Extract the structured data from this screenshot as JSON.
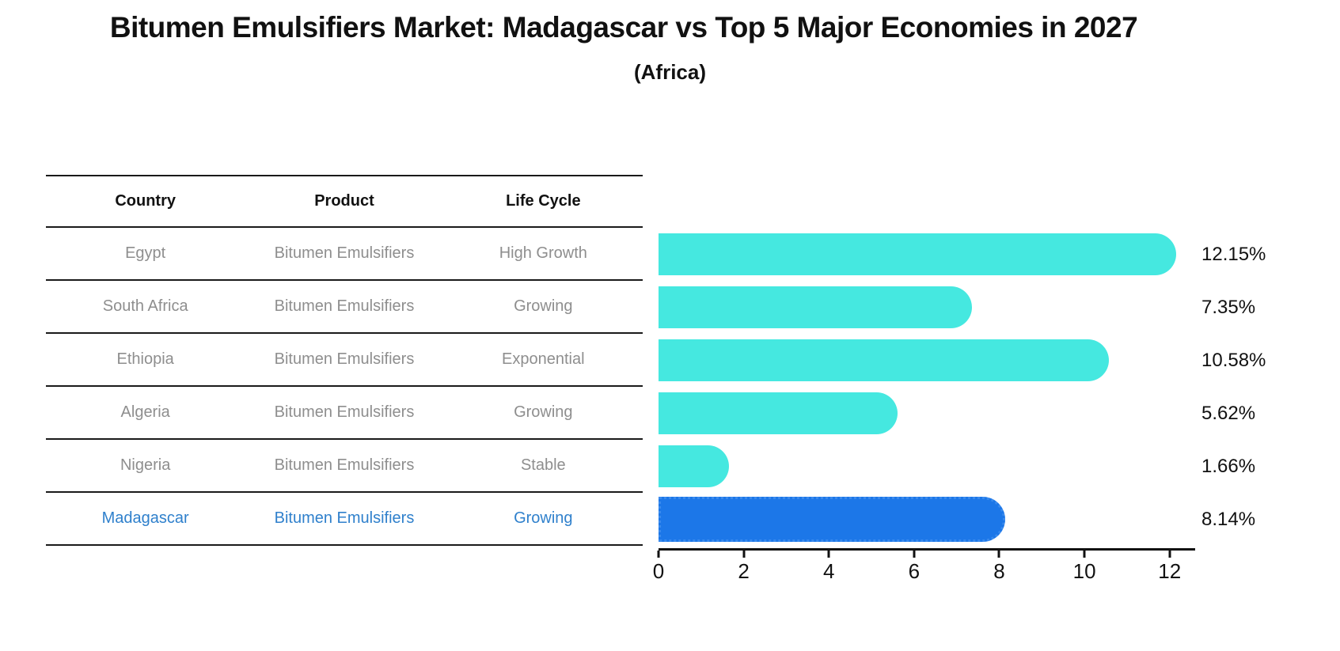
{
  "title": "Bitumen Emulsifiers Market: Madagascar vs Top 5 Major Economies in 2027",
  "subtitle": "(Africa)",
  "table": {
    "headers": [
      "Country",
      "Product",
      "Life Cycle"
    ],
    "rows": [
      {
        "country": "Egypt",
        "product": "Bitumen Emulsifiers",
        "life_cycle": "High Growth"
      },
      {
        "country": "South Africa",
        "product": "Bitumen Emulsifiers",
        "life_cycle": "Growing"
      },
      {
        "country": "Ethiopia",
        "product": "Bitumen Emulsifiers",
        "life_cycle": "Exponential"
      },
      {
        "country": "Algeria",
        "product": "Bitumen Emulsifiers",
        "life_cycle": "Growing"
      },
      {
        "country": "Nigeria",
        "product": "Bitumen Emulsifiers",
        "life_cycle": "Stable"
      },
      {
        "country": "Madagascar",
        "product": "Bitumen Emulsifiers",
        "life_cycle": "Growing"
      }
    ]
  },
  "chart_data": {
    "type": "bar",
    "orientation": "horizontal",
    "categories": [
      "Egypt",
      "South Africa",
      "Ethiopia",
      "Algeria",
      "Nigeria",
      "Madagascar"
    ],
    "values": [
      12.15,
      7.35,
      10.58,
      5.62,
      1.66,
      8.14
    ],
    "value_labels": [
      "12.15%",
      "7.35%",
      "10.58%",
      "5.62%",
      "1.66%",
      "8.14%"
    ],
    "xlim": [
      0,
      12.6
    ],
    "xticks": [
      0,
      2,
      4,
      6,
      8,
      10,
      12
    ],
    "grid": false,
    "legend": false,
    "bar_color": "#45E8E0",
    "highlight_color": "#1C77E8",
    "highlight_index": 5,
    "highlight_category": "Madagascar"
  },
  "colors": {
    "background": "#FFFFFF",
    "header_text": "#111111",
    "row_text": "#8E8E8E",
    "highlight_text": "#2F80CC",
    "table_line": "#1A1A1A",
    "axis": "#111111"
  }
}
